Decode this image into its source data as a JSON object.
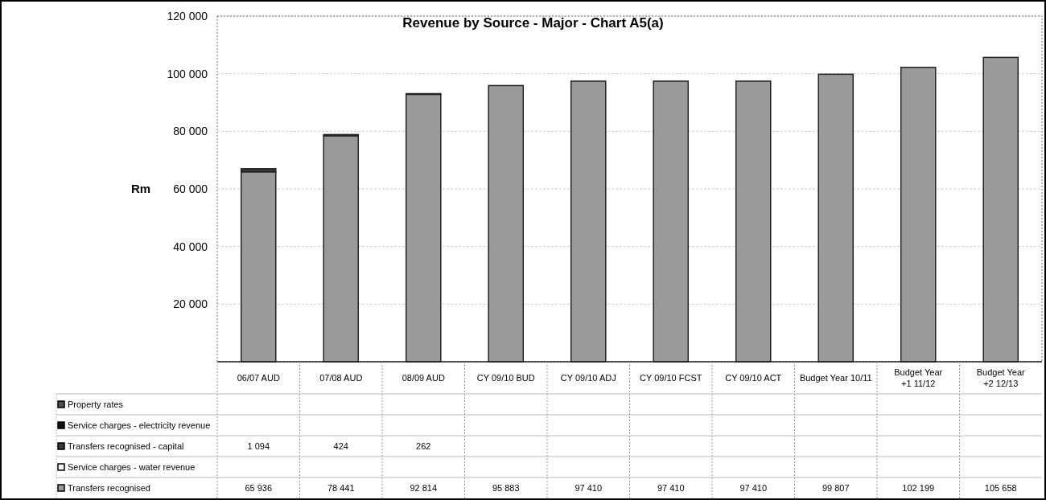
{
  "chart_data": {
    "type": "bar",
    "title": "Revenue by Source - Major - Chart A5(a)",
    "ylabel": "Rm",
    "stacked": true,
    "legend": "bottom",
    "grid": "y",
    "categories": [
      "06/07 AUD",
      "07/08 AUD",
      "08/09 AUD",
      "CY 09/10 BUD",
      "CY  09/10 ADJ",
      "CY 09/10 FCST",
      "CY 09/10 ACT",
      "Budget Year 10/11",
      "Budget Year +1 11/12",
      "Budget Year +2 12/13"
    ],
    "ylim": [
      0,
      120000
    ],
    "yticks": [
      {
        "value": 20000,
        "label": "20 000"
      },
      {
        "value": 40000,
        "label": "40 000"
      },
      {
        "value": 60000,
        "label": "60 000"
      },
      {
        "value": 80000,
        "label": "80 000"
      },
      {
        "value": 100000,
        "label": "100 000"
      },
      {
        "value": 120000,
        "label": "120 000"
      }
    ],
    "series": [
      {
        "name": "Transfers recognised",
        "color": "#9a9a9a",
        "values": [
          65936,
          78441,
          92814,
          95883,
          97410,
          97410,
          97410,
          99807,
          102199,
          105658
        ],
        "value_labels": [
          "65 936",
          "78 441",
          "92 814",
          "95 883",
          "97 410",
          "97 410",
          "97 410",
          "99 807",
          "102 199",
          "105 658"
        ]
      },
      {
        "name": "Service charges - water revenue",
        "color": "#f2f2f2",
        "values": [
          null,
          null,
          null,
          null,
          null,
          null,
          null,
          null,
          null,
          null
        ]
      },
      {
        "name": "Transfers recognised - capital",
        "color": "#3a3a3a",
        "values": [
          1094,
          424,
          262,
          null,
          null,
          null,
          null,
          null,
          null,
          null
        ],
        "value_labels": [
          "1 094",
          "424",
          "262",
          null,
          null,
          null,
          null,
          null,
          null,
          null
        ]
      },
      {
        "name": "Service charges - electricity revenue",
        "color": "#111111",
        "values": [
          null,
          null,
          null,
          null,
          null,
          null,
          null,
          null,
          null,
          null
        ]
      },
      {
        "name": "Property rates",
        "color": "#505050",
        "values": [
          null,
          null,
          null,
          null,
          null,
          null,
          null,
          null,
          null,
          null
        ]
      }
    ]
  }
}
